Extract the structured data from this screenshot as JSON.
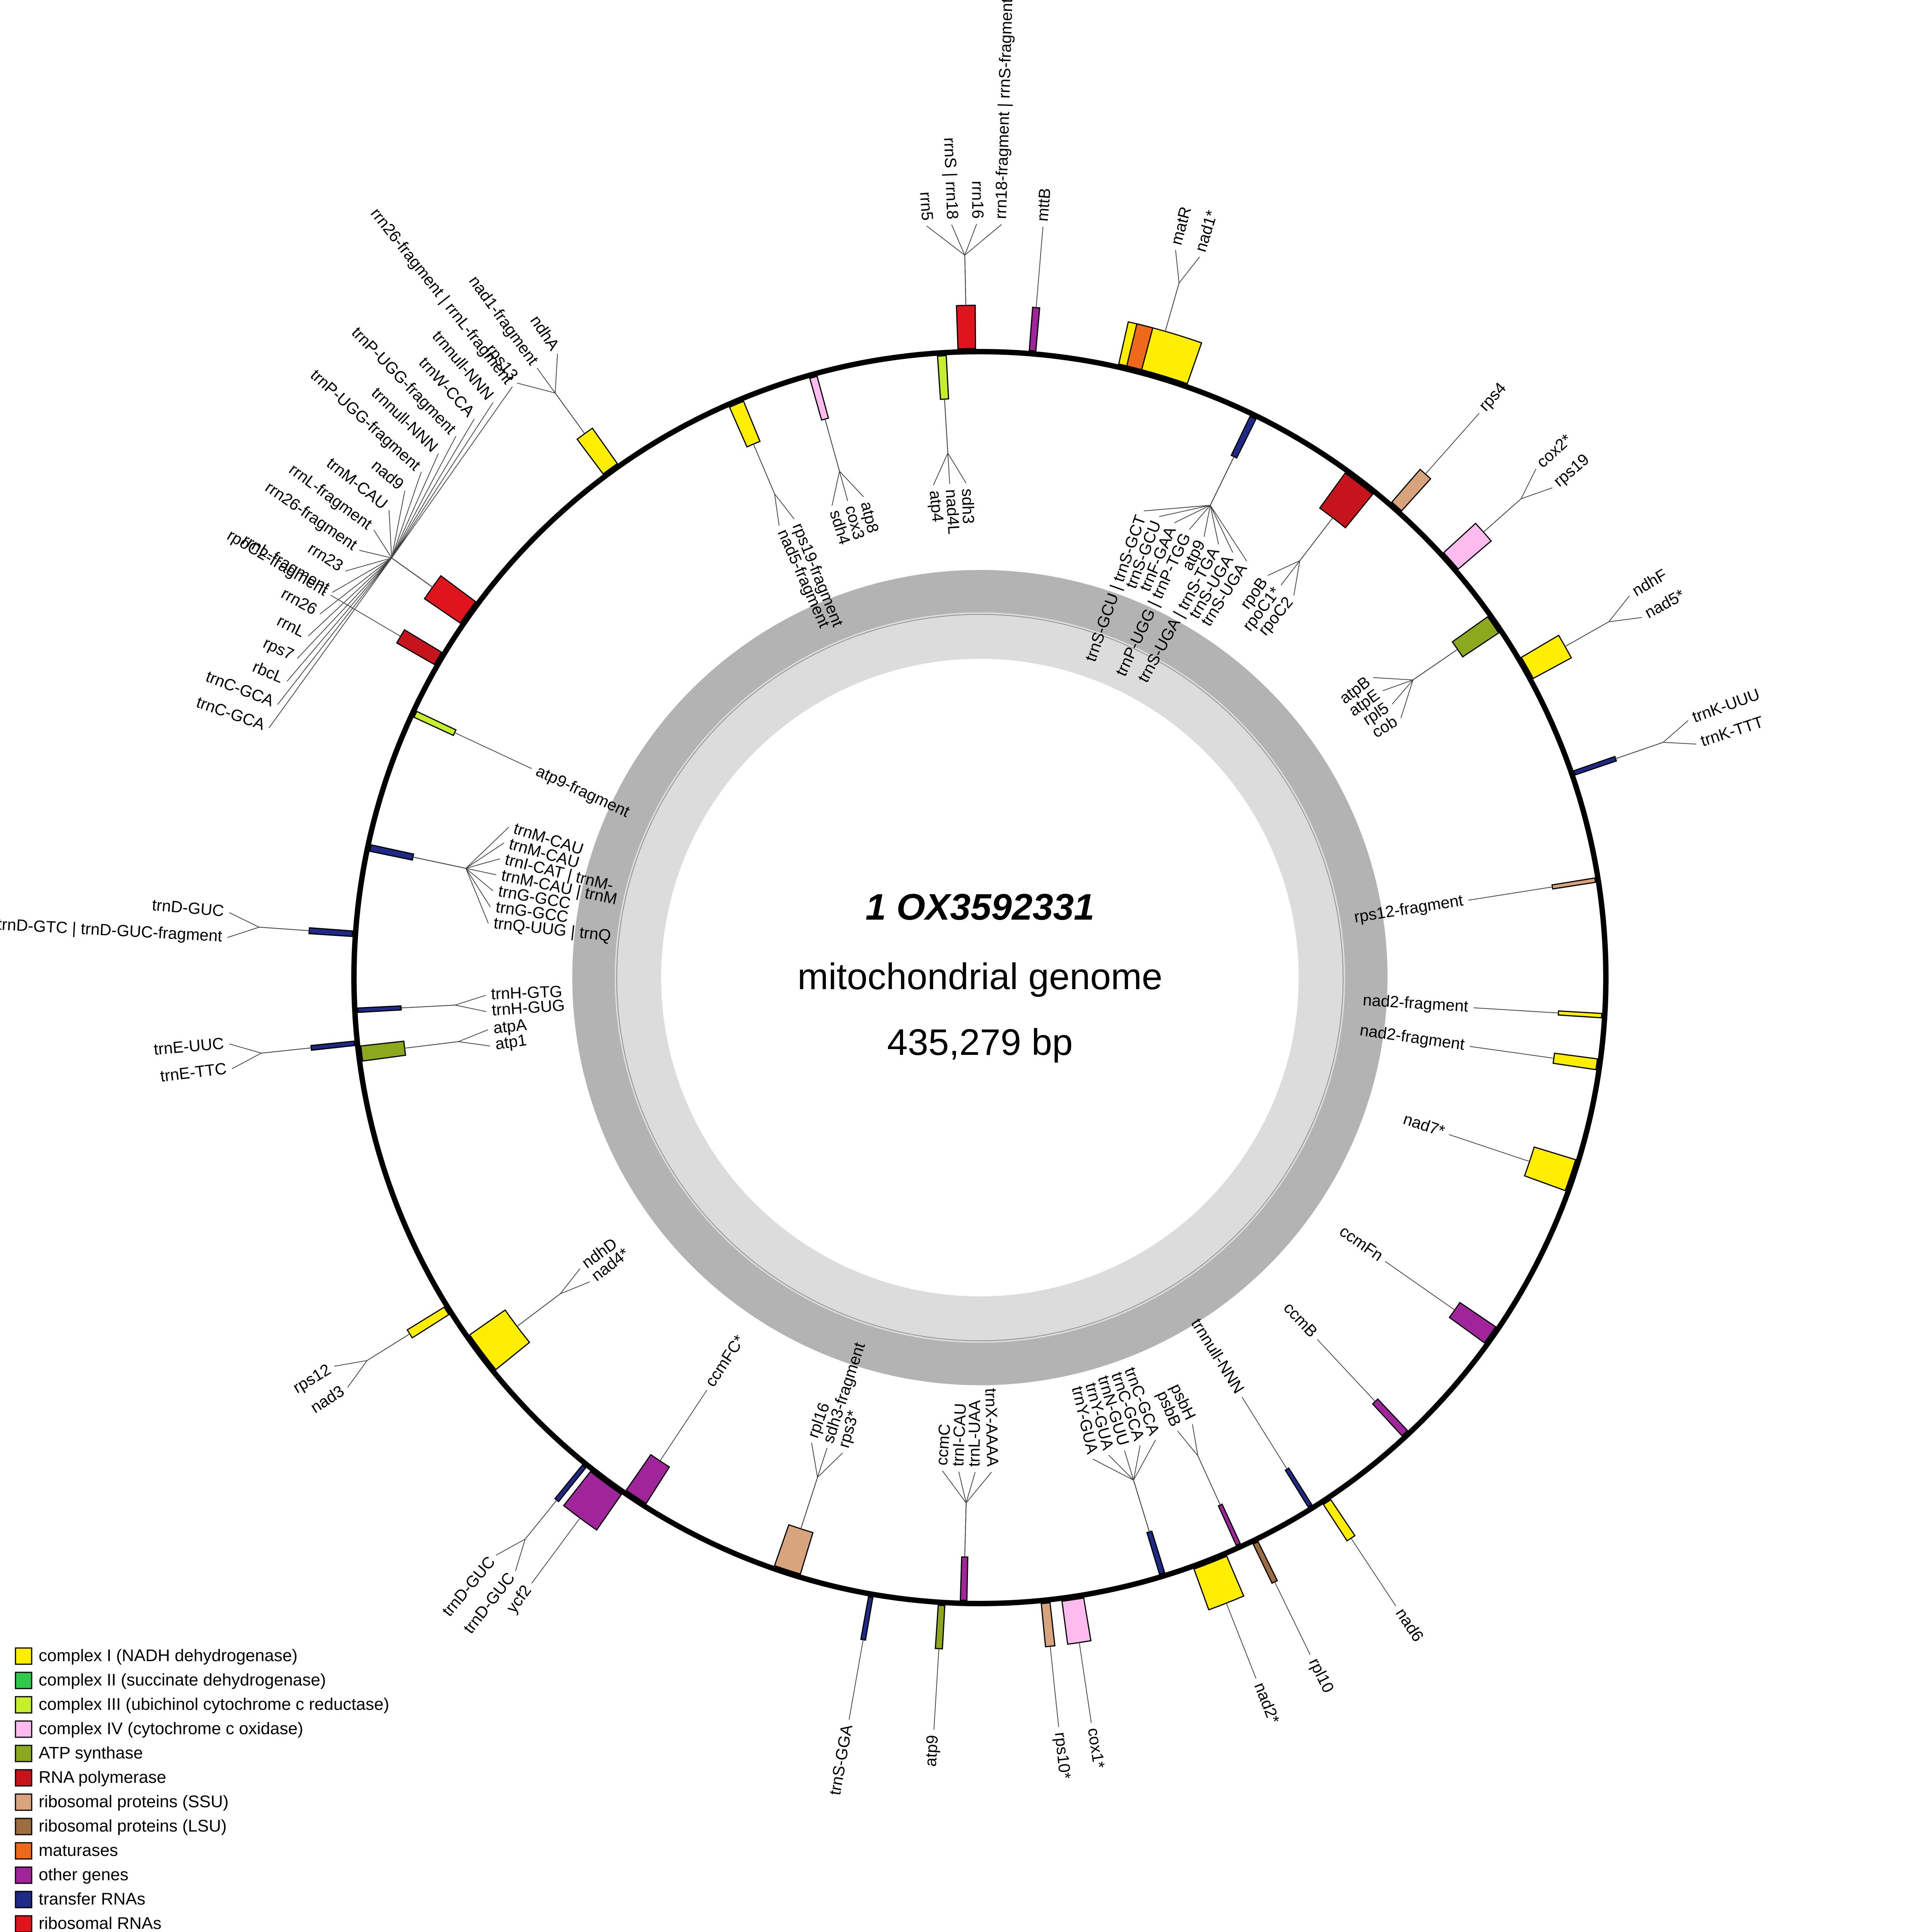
{
  "center": {
    "title": "1 OX3592331",
    "subtitle": "mitochondrial genome",
    "length": "435,279 bp"
  },
  "colors": {
    "complex_I": "#ffee00",
    "complex_II": "#2ec94a",
    "complex_III": "#c5ee2d",
    "complex_IV": "#ffbbee",
    "atp": "#8ca81d",
    "rnapol": "#c5141b",
    "ssu": "#d8a47e",
    "lsu": "#9b6d40",
    "maturase": "#ee6a1a",
    "other": "#a0259a",
    "trna": "#1f2a88",
    "rrna": "#e0141c"
  },
  "legend": [
    {
      "label": "complex I (NADH dehydrogenase)",
      "color": "#ffee00"
    },
    {
      "label": "complex II (succinate dehydrogenase)",
      "color": "#2ec94a"
    },
    {
      "label": "complex III (ubichinol cytochrome c reductase)",
      "color": "#c5ee2d"
    },
    {
      "label": "complex IV (cytochrome c oxidase)",
      "color": "#ffbbee"
    },
    {
      "label": "ATP synthase",
      "color": "#8ca81d"
    },
    {
      "label": "RNA polymerase",
      "color": "#c5141b"
    },
    {
      "label": "ribosomal proteins (SSU)",
      "color": "#d8a47e"
    },
    {
      "label": "ribosomal proteins (LSU)",
      "color": "#9b6d40"
    },
    {
      "label": "maturases",
      "color": "#ee6a1a"
    },
    {
      "label": "other genes",
      "color": "#a0259a"
    },
    {
      "label": "transfer RNAs",
      "color": "#1f2a88"
    },
    {
      "label": "ribosomal RNAs",
      "color": "#e0141c"
    }
  ],
  "genes": [
    {
      "labels": [
        "matR",
        "nad1*"
      ],
      "angle": 16.0,
      "span": 6.5,
      "out": true,
      "color": "#ffee00",
      "inner": [
        {
          "a": 14.2,
          "s": 1.4,
          "c": "#ee6a1a"
        }
      ]
    },
    {
      "labels": [
        "rrn5",
        "rrnS | rrn18",
        "rrn16",
        "rrn18-fragment | rrnS-fragment"
      ],
      "angle": -1.2,
      "span": 1.6,
      "out": true,
      "color": "#e0141c"
    },
    {
      "labels": [
        "mttB"
      ],
      "angle": 4.8,
      "span": 0.6,
      "out": true,
      "color": "#a0259a"
    },
    {
      "labels": [
        "atp4",
        "nad4L",
        "sdh3"
      ],
      "angle": -3.5,
      "span": 0.8,
      "out": false,
      "color": "#c5ee2d"
    },
    {
      "labels": [
        "sdh4",
        "cox3",
        "atp8"
      ],
      "angle": -15.5,
      "span": 0.7,
      "out": false,
      "color": "#ffbbee"
    },
    {
      "labels": [
        "nad5-fragment",
        "rps19-fragment"
      ],
      "angle": -23.0,
      "span": 1.4,
      "out": false,
      "color": "#ffee00"
    },
    {
      "labels": [
        "rps13",
        "nad1-fragment",
        "ndhA"
      ],
      "angle": -36.0,
      "span": 1.6,
      "out": true,
      "color": "#ffee00"
    },
    {
      "labels": [
        "trnC-GCA",
        "trnC-GCA",
        "rbcL",
        "rps7",
        "rrnL",
        "rrn26",
        "rrnL-fragment",
        "rrn23",
        "rrn26-fragment",
        "rrnL-fragment",
        "trnM-CAU",
        "nad9",
        "trnP-UGG-fragment",
        "trnnull-NNN",
        "trnP-UGG-fragment",
        "trnW-CCA",
        "trnnull-NNN",
        "rrn26-fragment | rrnL-fragment"
      ],
      "angle": -54.5,
      "span": 2.4,
      "out": true,
      "color": "#e0141c"
    },
    {
      "labels": [
        "rpoC2-fragment"
      ],
      "angle": -59.5,
      "span": 1.3,
      "out": true,
      "color": "#c5141b"
    },
    {
      "labels": [
        "atp9-fragment"
      ],
      "angle": -65.0,
      "span": 0.6,
      "out": false,
      "color": "#c5ee2d"
    },
    {
      "labels": [
        "trnQ-UUG | trnQ",
        "trnG-GCC",
        "trnG-GCC",
        "trnM-CAU | trnM",
        "trnI-CAT | trnM-",
        "trnM-CAU",
        "trnM-CAU"
      ],
      "angle": -78.0,
      "span": 0.6,
      "out": false,
      "color": "#1f2a88"
    },
    {
      "labels": [
        "trnD-GTC | trnD-GUC-fragment",
        "trnD-GUC"
      ],
      "angle": -86.0,
      "span": 0.5,
      "out": true,
      "color": "#1f2a88"
    },
    {
      "labels": [
        "trnH-GUG",
        "trnH-GTG"
      ],
      "angle": -93.0,
      "span": 0.4,
      "out": false,
      "color": "#1f2a88"
    },
    {
      "labels": [
        "trnE-TTC",
        "trnE-UUC"
      ],
      "angle": -96.0,
      "span": 0.4,
      "out": true,
      "color": "#1f2a88"
    },
    {
      "labels": [
        "atp1",
        "atpA"
      ],
      "angle": -97.0,
      "span": 1.4,
      "out": false,
      "color": "#8ca81d"
    },
    {
      "labels": [
        "nad3",
        "rps12"
      ],
      "angle": -122.0,
      "span": 0.8,
      "out": true,
      "color": "#ffee00"
    },
    {
      "labels": [
        "nad4*",
        "ndhD"
      ],
      "angle": -127.0,
      "span": 4.0,
      "out": false,
      "color": "#ffee00"
    },
    {
      "labels": [
        "trnD-GUC",
        "trnD-GUC"
      ],
      "angle": -141.0,
      "span": 0.4,
      "out": true,
      "color": "#1f2a88"
    },
    {
      "labels": [
        "ycf2"
      ],
      "angle": -143.5,
      "span": 3.5,
      "out": true,
      "color": "#a0259a"
    },
    {
      "labels": [
        "ccmFC*"
      ],
      "angle": -146.5,
      "span": 2.2,
      "out": false,
      "color": "#a0259a"
    },
    {
      "labels": [
        "rps3*",
        "sdh3-fragment",
        "rpl16"
      ],
      "angle": -162.0,
      "span": 2.5,
      "out": false,
      "color": "#d8a47e"
    },
    {
      "labels": [
        "trnS-GGA"
      ],
      "angle": -170.0,
      "span": 0.4,
      "out": true,
      "color": "#1f2a88"
    },
    {
      "labels": [
        "trnX-AAAA",
        "trnL-UAA",
        "trnI-CAU",
        "ccmC"
      ],
      "angle": -178.5,
      "span": 0.6,
      "out": false,
      "color": "#a0259a"
    },
    {
      "labels": [
        "atp9"
      ],
      "angle": -176.5,
      "span": 0.6,
      "out": true,
      "color": "#8ca81d"
    },
    {
      "labels": [
        "rps10*"
      ],
      "angle": 174.0,
      "span": 0.8,
      "out": true,
      "color": "#d8a47e"
    },
    {
      "labels": [
        "cox1*"
      ],
      "angle": 171.5,
      "span": 2.0,
      "out": true,
      "color": "#ffbbee"
    },
    {
      "labels": [
        "trnC-GCA",
        "trnC-GCA",
        "trnN-GUU",
        "trnY-GUA",
        "trnY-GUA"
      ],
      "angle": 163.0,
      "span": 0.5,
      "out": false,
      "color": "#1f2a88"
    },
    {
      "labels": [
        "nad2*"
      ],
      "angle": 158.5,
      "span": 3.2,
      "out": true,
      "color": "#ffee00"
    },
    {
      "labels": [
        "rpl10"
      ],
      "angle": 154.0,
      "span": 0.5,
      "out": true,
      "color": "#9b6d40"
    },
    {
      "labels": [
        "psbH",
        "psbB"
      ],
      "angle": 155.5,
      "span": 0.4,
      "out": false,
      "color": "#a0259a"
    },
    {
      "labels": [
        "trnnull-NNN"
      ],
      "angle": 148.0,
      "span": 0.4,
      "out": false,
      "color": "#1f2a88"
    },
    {
      "labels": [
        "nad6"
      ],
      "angle": 146.5,
      "span": 0.8,
      "out": true,
      "color": "#ffee00"
    },
    {
      "labels": [
        "ccmB"
      ],
      "angle": 137.0,
      "span": 0.7,
      "out": false,
      "color": "#a0259a"
    },
    {
      "labels": [
        "ccmFn"
      ],
      "angle": 125.0,
      "span": 1.8,
      "out": false,
      "color": "#a0259a"
    },
    {
      "labels": [
        "nad7*"
      ],
      "angle": 108.5,
      "span": 3.0,
      "out": false,
      "color": "#ffee00"
    },
    {
      "labels": [
        "nad2-fragment"
      ],
      "angle": 98.0,
      "span": 1.0,
      "out": false,
      "color": "#ffee00"
    },
    {
      "labels": [
        "nad2-fragment"
      ],
      "angle": 93.5,
      "span": 0.4,
      "out": false,
      "color": "#ffee00"
    },
    {
      "labels": [
        "rps12-fragment"
      ],
      "angle": 81.0,
      "span": 0.4,
      "out": false,
      "color": "#d8a47e"
    },
    {
      "labels": [
        "trnK-UUU",
        "trnK-TTT"
      ],
      "angle": 71.0,
      "span": 0.4,
      "out": true,
      "color": "#1f2a88"
    },
    {
      "labels": [
        "ndhF",
        "nad5*"
      ],
      "angle": 60.5,
      "span": 2.2,
      "out": true,
      "color": "#ffee00"
    },
    {
      "labels": [
        "atpB",
        "atpE",
        "rpl5",
        "cob"
      ],
      "angle": 55.5,
      "span": 1.8,
      "out": false,
      "color": "#8ca81d"
    },
    {
      "labels": [
        "cox2*",
        "rps19"
      ],
      "angle": 48.5,
      "span": 2.0,
      "out": true,
      "color": "#ffbbee"
    },
    {
      "labels": [
        "rps4"
      ],
      "angle": 41.5,
      "span": 1.2,
      "out": true,
      "color": "#d8a47e"
    },
    {
      "labels": [
        "rpoB",
        "rpoC1*",
        "rpoC2"
      ],
      "angle": 37.5,
      "span": 3.2,
      "out": false,
      "color": "#c5141b"
    },
    {
      "labels": [
        "trnS-GCU | trnS-GCT",
        "trnS-GCU",
        "trnF-GAA",
        "trnP-UGG | trnP-TGG",
        "atp9",
        "trnS-UGA | trnS-TGA",
        "trnS-UGA",
        "trnS-UGA"
      ],
      "angle": 26.0,
      "span": 0.6,
      "out": false,
      "color": "#1f2a88"
    }
  ]
}
